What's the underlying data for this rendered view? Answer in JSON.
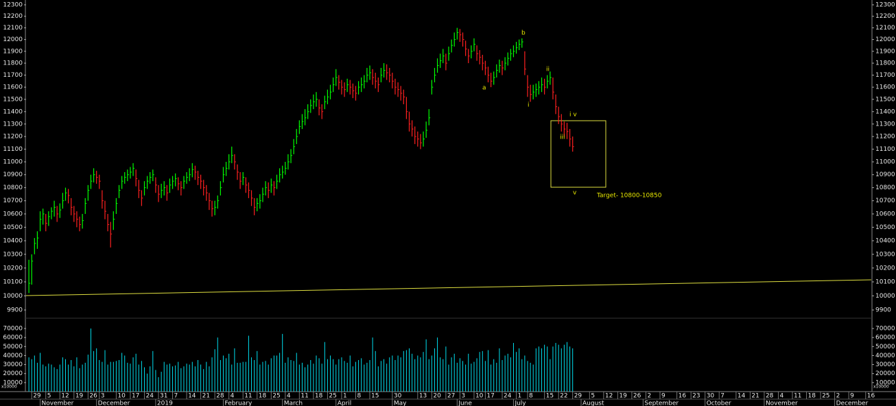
{
  "chart_data": {
    "type": "hlc",
    "log_scale": true,
    "up_color": "#00ff00",
    "down_color": "#ff2020",
    "xlim": [
      -1,
      299
    ],
    "ylim": [
      9900,
      12300
    ],
    "yticks": [
      9900,
      10000,
      10100,
      10200,
      10300,
      10400,
      10500,
      10600,
      10700,
      10800,
      10900,
      11000,
      11100,
      11200,
      11300,
      11400,
      11500,
      11600,
      11700,
      11800,
      11900,
      12000,
      12100,
      12200,
      12300
    ],
    "day_ticks": [
      {
        "value": 1,
        "label": "29"
      },
      {
        "value": 6,
        "label": "5"
      },
      {
        "value": 11,
        "label": "12"
      },
      {
        "value": 16,
        "label": "19"
      },
      {
        "value": 21,
        "label": "26"
      },
      {
        "value": 25,
        "label": "3"
      },
      {
        "value": 31,
        "label": "10"
      },
      {
        "value": 36,
        "label": "17"
      },
      {
        "value": 41,
        "label": "24"
      },
      {
        "value": 46,
        "label": "31"
      },
      {
        "value": 51,
        "label": "7"
      },
      {
        "value": 56,
        "label": "14"
      },
      {
        "value": 61,
        "label": "21"
      },
      {
        "value": 66,
        "label": "28"
      },
      {
        "value": 71,
        "label": "4"
      },
      {
        "value": 76,
        "label": "11"
      },
      {
        "value": 81,
        "label": "18"
      },
      {
        "value": 86,
        "label": "25"
      },
      {
        "value": 91,
        "label": "4"
      },
      {
        "value": 96,
        "label": "11"
      },
      {
        "value": 101,
        "label": "18"
      },
      {
        "value": 106,
        "label": "25"
      },
      {
        "value": 111,
        "label": "1"
      },
      {
        "value": 116,
        "label": "8"
      },
      {
        "value": 121,
        "label": "15"
      },
      {
        "value": 129,
        "label": "30"
      },
      {
        "value": 138,
        "label": "13"
      },
      {
        "value": 143,
        "label": "20"
      },
      {
        "value": 148,
        "label": "27"
      },
      {
        "value": 153,
        "label": "3"
      },
      {
        "value": 158,
        "label": "10"
      },
      {
        "value": 162,
        "label": "17"
      },
      {
        "value": 168,
        "label": "24"
      },
      {
        "value": 173,
        "label": "1"
      },
      {
        "value": 177,
        "label": "8"
      },
      {
        "value": 183,
        "label": "15"
      },
      {
        "value": 188,
        "label": "22"
      },
      {
        "value": 193,
        "label": "29"
      },
      {
        "value": 199,
        "label": "5"
      },
      {
        "value": 204,
        "label": "12"
      },
      {
        "value": 209,
        "label": "19"
      },
      {
        "value": 214,
        "label": "26"
      },
      {
        "value": 219,
        "label": "2"
      },
      {
        "value": 224,
        "label": "9"
      },
      {
        "value": 230,
        "label": "16"
      },
      {
        "value": 235,
        "label": "23"
      },
      {
        "value": 240,
        "label": "30"
      },
      {
        "value": 245,
        "label": "7"
      },
      {
        "value": 251,
        "label": "14"
      },
      {
        "value": 256,
        "label": "21"
      },
      {
        "value": 261,
        "label": "28"
      },
      {
        "value": 266,
        "label": "4"
      },
      {
        "value": 271,
        "label": "11"
      },
      {
        "value": 276,
        "label": "18"
      },
      {
        "value": 281,
        "label": "25"
      },
      {
        "value": 286,
        "label": "2"
      },
      {
        "value": 291,
        "label": "9"
      },
      {
        "value": 297,
        "label": "16"
      }
    ],
    "month_ticks": [
      {
        "value": 4,
        "label": "November"
      },
      {
        "value": 24,
        "label": "December"
      },
      {
        "value": 45,
        "label": "2019"
      },
      {
        "value": 69,
        "label": "February"
      },
      {
        "value": 90,
        "label": "March"
      },
      {
        "value": 109,
        "label": "April"
      },
      {
        "value": 129,
        "label": "May"
      },
      {
        "value": 152,
        "label": "June"
      },
      {
        "value": 172,
        "label": "July"
      },
      {
        "value": 196,
        "label": "August"
      },
      {
        "value": 218,
        "label": "September"
      },
      {
        "value": 240,
        "label": "October"
      },
      {
        "value": 261,
        "label": "November"
      },
      {
        "value": 286,
        "label": "December"
      }
    ],
    "high": [
      10260,
      10300,
      10420,
      10470,
      10620,
      10640,
      10600,
      10620,
      10650,
      10700,
      10660,
      10680,
      10760,
      10800,
      10790,
      10720,
      10660,
      10620,
      10580,
      10600,
      10720,
      10820,
      10900,
      10950,
      10930,
      10900,
      10780,
      10700,
      10600,
      10540,
      10620,
      10720,
      10820,
      10890,
      10920,
      10940,
      10960,
      10990,
      10940,
      10860,
      10780,
      10850,
      10890,
      10920,
      10940,
      10880,
      10820,
      10830,
      10850,
      10820,
      10870,
      10890,
      10910,
      10880,
      10850,
      10890,
      10920,
      10950,
      10990,
      10970,
      10930,
      10900,
      10860,
      10820,
      10760,
      10700,
      10700,
      10740,
      10850,
      10960,
      11000,
      11060,
      11120,
      11060,
      10980,
      10920,
      10920,
      10880,
      10840,
      10780,
      10720,
      10720,
      10750,
      10800,
      10850,
      10840,
      10870,
      10850,
      10900,
      10950,
      10970,
      11000,
      11060,
      11100,
      11180,
      11260,
      11330,
      11380,
      11420,
      11460,
      11500,
      11540,
      11560,
      11500,
      11460,
      11530,
      11580,
      11620,
      11680,
      11750,
      11700,
      11660,
      11640,
      11670,
      11660,
      11630,
      11610,
      11650,
      11680,
      11700,
      11760,
      11780,
      11750,
      11720,
      11680,
      11760,
      11800,
      11790,
      11760,
      11720,
      11670,
      11640,
      11610,
      11580,
      11520,
      11400,
      11330,
      11280,
      11240,
      11220,
      11240,
      11320,
      11420,
      11660,
      11760,
      11840,
      11880,
      11920,
      11880,
      11940,
      12000,
      12060,
      12100,
      12090,
      12060,
      11990,
      11920,
      11950,
      12010,
      11950,
      11910,
      11870,
      11820,
      11770,
      11720,
      11730,
      11790,
      11830,
      11820,
      11850,
      11890,
      11920,
      11950,
      11980,
      12000,
      12010,
      11900,
      11700,
      11620,
      11620,
      11630,
      11650,
      11680,
      11670,
      11700,
      11730,
      11680,
      11540,
      11440,
      11380,
      11320,
      11310,
      11260,
      11200
    ],
    "low": [
      10020,
      10080,
      10300,
      10340,
      10470,
      10520,
      10470,
      10510,
      10560,
      10580,
      10540,
      10570,
      10640,
      10700,
      10680,
      10590,
      10540,
      10500,
      10470,
      10490,
      10600,
      10700,
      10790,
      10840,
      10830,
      10790,
      10640,
      10560,
      10470,
      10350,
      10480,
      10600,
      10720,
      10790,
      10830,
      10850,
      10870,
      10890,
      10810,
      10720,
      10660,
      10740,
      10790,
      10830,
      10850,
      10760,
      10690,
      10720,
      10740,
      10700,
      10760,
      10790,
      10810,
      10780,
      10740,
      10790,
      10830,
      10850,
      10880,
      10860,
      10820,
      10790,
      10740,
      10700,
      10630,
      10580,
      10590,
      10640,
      10740,
      10840,
      10890,
      10940,
      10990,
      10940,
      10860,
      10790,
      10820,
      10760,
      10720,
      10660,
      10590,
      10620,
      10640,
      10690,
      10740,
      10720,
      10760,
      10740,
      10790,
      10840,
      10870,
      10900,
      10940,
      10990,
      11060,
      11140,
      11220,
      11260,
      11290,
      11340,
      11390,
      11420,
      11440,
      11370,
      11340,
      11420,
      11460,
      11500,
      11560,
      11610,
      11580,
      11540,
      11520,
      11560,
      11540,
      11510,
      11490,
      11540,
      11560,
      11590,
      11640,
      11660,
      11620,
      11590,
      11560,
      11640,
      11680,
      11660,
      11640,
      11590,
      11540,
      11520,
      11490,
      11460,
      11340,
      11240,
      11200,
      11140,
      11120,
      11100,
      11120,
      11190,
      11290,
      11540,
      11640,
      11720,
      11760,
      11800,
      11740,
      11820,
      11890,
      11940,
      12000,
      11980,
      11940,
      11860,
      11800,
      11840,
      11900,
      11820,
      11790,
      11740,
      11700,
      11640,
      11600,
      11620,
      11680,
      11720,
      11700,
      11740,
      11780,
      11820,
      11850,
      11880,
      11910,
      11930,
      11700,
      11520,
      11480,
      11500,
      11520,
      11540,
      11560,
      11540,
      11590,
      11620,
      11500,
      11380,
      11300,
      11240,
      11200,
      11180,
      11120,
      11080
    ],
    "close": [
      10090,
      10250,
      10380,
      10420,
      10560,
      10600,
      10530,
      10580,
      10620,
      10650,
      10600,
      10630,
      10700,
      10760,
      10740,
      10650,
      10600,
      10560,
      10520,
      10550,
      10680,
      10780,
      10850,
      10900,
      10880,
      10850,
      10700,
      10620,
      10520,
      10450,
      10560,
      10680,
      10780,
      10850,
      10880,
      10900,
      10920,
      10950,
      10870,
      10780,
      10720,
      10800,
      10850,
      10880,
      10900,
      10820,
      10750,
      10780,
      10800,
      10760,
      10820,
      10850,
      10870,
      10830,
      10800,
      10850,
      10880,
      10900,
      10940,
      10920,
      10880,
      10850,
      10800,
      10760,
      10700,
      10640,
      10650,
      10700,
      10800,
      10900,
      10950,
      11000,
      11050,
      11000,
      10920,
      10850,
      10880,
      10820,
      10780,
      10720,
      10650,
      10680,
      10700,
      10750,
      10800,
      10780,
      10820,
      10800,
      10850,
      10900,
      10920,
      10950,
      11000,
      11050,
      11120,
      11200,
      11280,
      11320,
      11350,
      11400,
      11450,
      11480,
      11500,
      11430,
      11400,
      11480,
      11520,
      11560,
      11620,
      11680,
      11640,
      11600,
      11580,
      11620,
      11600,
      11570,
      11550,
      11600,
      11620,
      11650,
      11700,
      11720,
      11680,
      11650,
      11620,
      11700,
      11740,
      11720,
      11700,
      11650,
      11600,
      11580,
      11550,
      11520,
      11400,
      11300,
      11260,
      11200,
      11180,
      11150,
      11180,
      11250,
      11350,
      11600,
      11700,
      11780,
      11820,
      11860,
      11800,
      11880,
      11950,
      12000,
      12060,
      12040,
      12000,
      11920,
      11860,
      11900,
      11960,
      11880,
      11850,
      11800,
      11760,
      11700,
      11650,
      11680,
      11740,
      11780,
      11760,
      11800,
      11840,
      11880,
      11900,
      11930,
      11960,
      11980,
      11750,
      11600,
      11540,
      11560,
      11580,
      11600,
      11620,
      11600,
      11650,
      11680,
      11560,
      11440,
      11360,
      11300,
      11260,
      11240,
      11180,
      11120
    ],
    "volume": {
      "color": "#00e0f0",
      "scale_label": "x10000",
      "ylim": [
        0,
        70000
      ],
      "yticks": [
        10000,
        20000,
        30000,
        40000,
        50000,
        60000,
        70000
      ],
      "values": [
        38000,
        36000,
        40000,
        32000,
        43000,
        30000,
        28000,
        31000,
        30000,
        27000,
        25000,
        30000,
        38000,
        36000,
        30000,
        35000,
        28000,
        38000,
        26000,
        30000,
        32000,
        41000,
        70000,
        45000,
        48000,
        35000,
        33000,
        46000,
        30000,
        33000,
        33000,
        34000,
        35000,
        43000,
        40000,
        32000,
        31000,
        38000,
        42000,
        30000,
        34000,
        27000,
        20000,
        28000,
        45000,
        24000,
        16000,
        22000,
        33000,
        30000,
        31000,
        28000,
        29000,
        33000,
        26000,
        28000,
        31000,
        30000,
        33000,
        28000,
        35000,
        30000,
        25000,
        33000,
        28000,
        38000,
        47000,
        60000,
        35000,
        40000,
        37000,
        42000,
        30000,
        48000,
        32000,
        32000,
        33000,
        33000,
        62000,
        38000,
        35000,
        45000,
        30000,
        33000,
        34000,
        30000,
        37000,
        40000,
        40000,
        43000,
        64000,
        32000,
        38000,
        35000,
        34000,
        43000,
        30000,
        32000,
        27000,
        30000,
        35000,
        31000,
        40000,
        37000,
        31000,
        55000,
        36000,
        40000,
        36000,
        30000,
        36000,
        38000,
        34000,
        32000,
        40000,
        28000,
        33000,
        35000,
        37000,
        30000,
        32000,
        35000,
        60000,
        45000,
        28000,
        34000,
        36000,
        31000,
        38000,
        40000,
        35000,
        40000,
        38000,
        45000,
        46000,
        48000,
        42000,
        36000,
        40000,
        38000,
        44000,
        58000,
        36000,
        40000,
        48000,
        60000,
        38000,
        36000,
        50000,
        30000,
        38000,
        42000,
        32000,
        37000,
        34000,
        30000,
        42000,
        31000,
        33000,
        37000,
        44000,
        45000,
        34000,
        46000,
        30000,
        36000,
        32000,
        48000,
        35000,
        40000,
        42000,
        38000,
        54000,
        44000,
        48000,
        36000,
        40000,
        34000,
        32000,
        30000,
        48000,
        50000,
        48000,
        52000,
        50000,
        36000,
        50000,
        54000,
        52000,
        48000,
        52000,
        55000,
        50000,
        48000
      ]
    },
    "annotations": [
      "a",
      "b",
      "i",
      "ii",
      "iii",
      "i v",
      "v",
      "Target- 10800-10850"
    ]
  }
}
